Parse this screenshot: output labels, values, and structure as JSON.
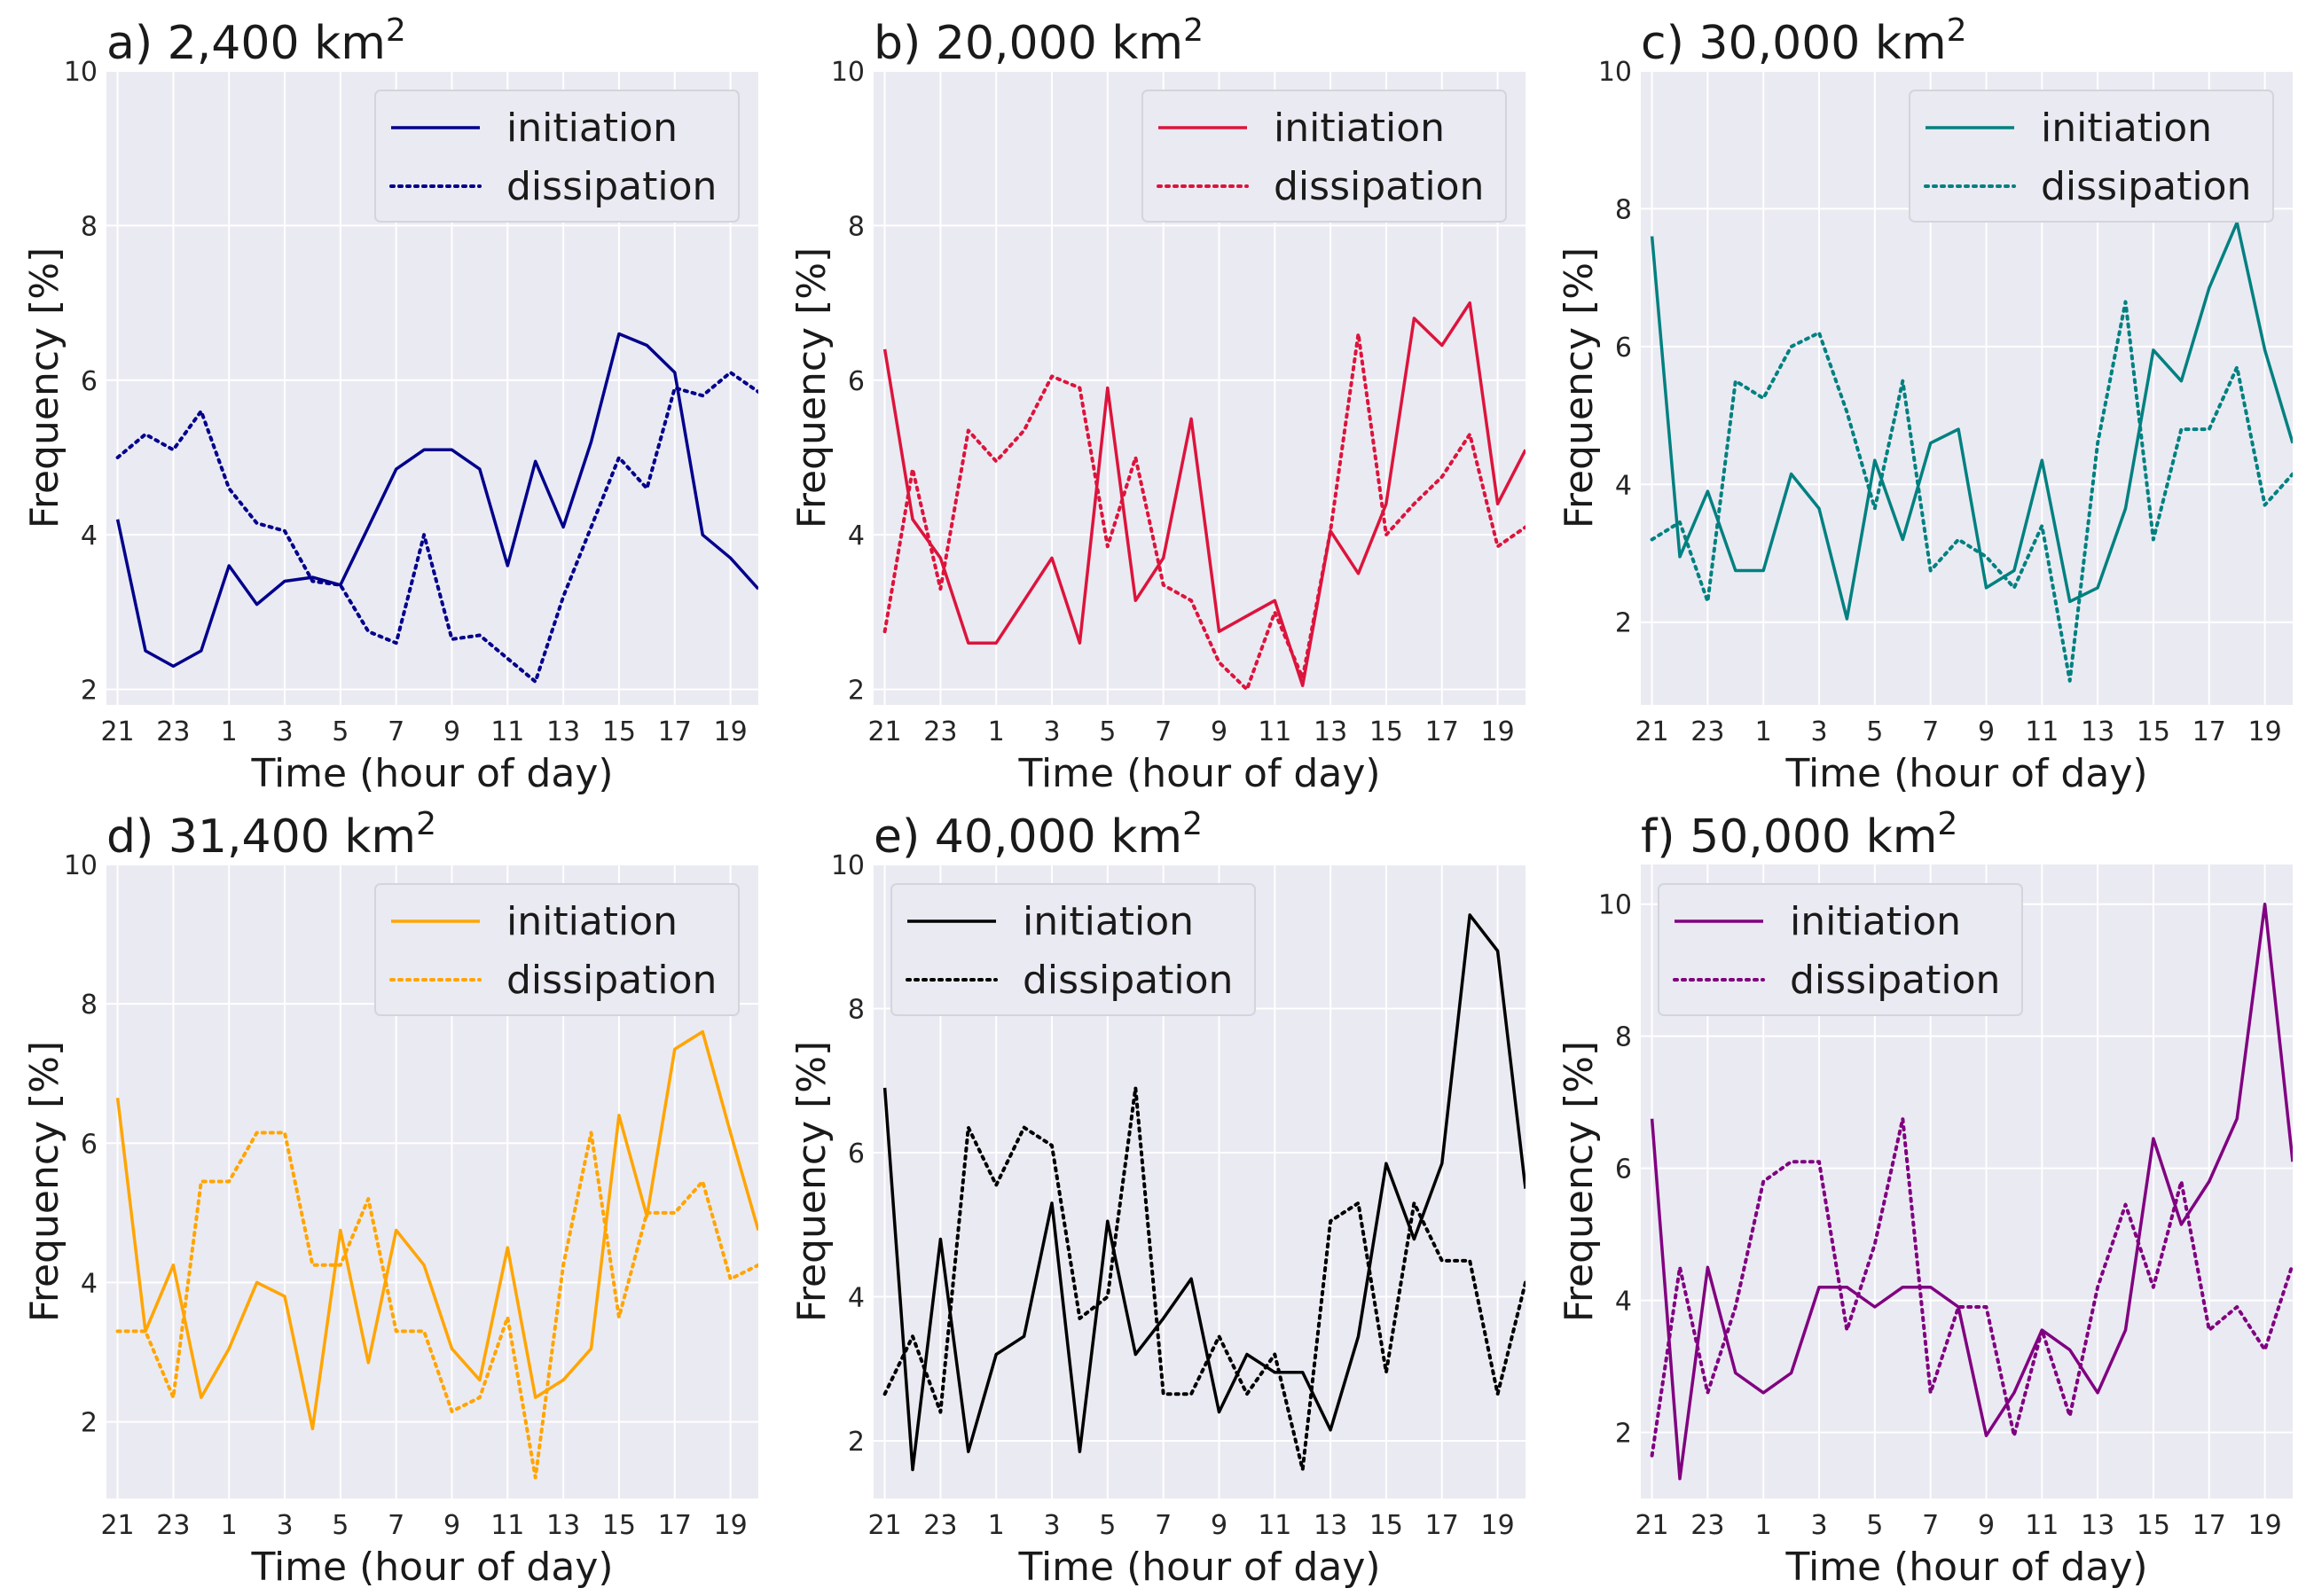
{
  "chart_data": [
    {
      "type": "line",
      "title": "a) 2,400 km",
      "title_sup": "2",
      "xlabel": "Time (hour of day)",
      "ylabel": "Frequency [%]",
      "x": [
        21,
        22,
        23,
        24,
        25,
        26,
        27,
        28,
        29,
        30,
        31,
        32,
        33,
        34,
        35,
        36,
        37,
        38,
        39,
        40,
        41,
        42,
        43,
        44
      ],
      "xticks": [
        21,
        23,
        25,
        27,
        29,
        31,
        33,
        35,
        37,
        39,
        41,
        43
      ],
      "xtick_labels": [
        "21",
        "23",
        "1",
        "3",
        "5",
        "7",
        "9",
        "11",
        "13",
        "15",
        "17",
        "19"
      ],
      "ylim": [
        1.8,
        10.0
      ],
      "yticks": [
        2,
        4,
        6,
        8,
        10
      ],
      "ytick_labels": [
        "2",
        "4",
        "6",
        "8",
        "10"
      ],
      "xlim": [
        20.6,
        44.0
      ],
      "color": "#00008b",
      "legend_position": "top-right",
      "series": [
        {
          "name": "initiation",
          "style": "solid",
          "values": [
            4.2,
            2.5,
            2.3,
            2.5,
            3.6,
            3.1,
            3.4,
            3.45,
            3.35,
            4.1,
            4.85,
            5.1,
            5.1,
            4.85,
            3.6,
            4.95,
            4.1,
            5.2,
            6.6,
            6.45,
            6.1,
            4.0,
            3.7,
            3.3
          ]
        },
        {
          "name": "dissipation",
          "style": "dotted",
          "values": [
            5.0,
            5.3,
            5.1,
            5.6,
            4.6,
            4.15,
            4.05,
            3.4,
            3.35,
            2.75,
            2.6,
            4.0,
            2.65,
            2.7,
            2.4,
            2.1,
            3.2,
            4.1,
            5.0,
            4.6,
            5.9,
            5.8,
            6.1,
            5.85
          ]
        }
      ]
    },
    {
      "type": "line",
      "title": "b) 20,000 km",
      "title_sup": "2",
      "xlabel": "Time (hour of day)",
      "ylabel": "Frequency [%]",
      "x": [
        21,
        22,
        23,
        24,
        25,
        26,
        27,
        28,
        29,
        30,
        31,
        32,
        33,
        34,
        35,
        36,
        37,
        38,
        39,
        40,
        41,
        42,
        43,
        44
      ],
      "xticks": [
        21,
        23,
        25,
        27,
        29,
        31,
        33,
        35,
        37,
        39,
        41,
        43
      ],
      "xtick_labels": [
        "21",
        "23",
        "1",
        "3",
        "5",
        "7",
        "9",
        "11",
        "13",
        "15",
        "17",
        "19"
      ],
      "ylim": [
        1.8,
        10.0
      ],
      "yticks": [
        2,
        4,
        6,
        8,
        10
      ],
      "ytick_labels": [
        "2",
        "4",
        "6",
        "8",
        "10"
      ],
      "xlim": [
        20.6,
        44.0
      ],
      "color": "#dc143c",
      "legend_position": "top-right",
      "series": [
        {
          "name": "initiation",
          "style": "solid",
          "values": [
            6.4,
            4.2,
            3.7,
            2.6,
            2.6,
            3.15,
            3.7,
            2.6,
            5.9,
            3.15,
            3.7,
            5.5,
            2.75,
            2.95,
            3.15,
            2.05,
            4.05,
            3.5,
            4.4,
            6.8,
            6.45,
            7.0,
            4.4,
            5.1
          ]
        },
        {
          "name": "dissipation",
          "style": "dotted",
          "values": [
            2.75,
            4.85,
            3.3,
            5.35,
            4.95,
            5.35,
            6.05,
            5.9,
            3.85,
            5.0,
            3.35,
            3.15,
            2.35,
            2.0,
            3.0,
            2.15,
            4.05,
            6.6,
            4.0,
            4.4,
            4.75,
            5.3,
            3.85,
            4.1
          ]
        }
      ]
    },
    {
      "type": "line",
      "title": "c) 30,000 km",
      "title_sup": "2",
      "xlabel": "Time (hour of day)",
      "ylabel": "Frequency [%]",
      "x": [
        21,
        22,
        23,
        24,
        25,
        26,
        27,
        28,
        29,
        30,
        31,
        32,
        33,
        34,
        35,
        36,
        37,
        38,
        39,
        40,
        41,
        42,
        43,
        44
      ],
      "xticks": [
        21,
        23,
        25,
        27,
        29,
        31,
        33,
        35,
        37,
        39,
        41,
        43
      ],
      "xtick_labels": [
        "21",
        "23",
        "1",
        "3",
        "5",
        "7",
        "9",
        "11",
        "13",
        "15",
        "17",
        "19"
      ],
      "ylim": [
        0.8,
        10.0
      ],
      "yticks": [
        2,
        4,
        6,
        8,
        10
      ],
      "ytick_labels": [
        "2",
        "4",
        "6",
        "8",
        "10"
      ],
      "xlim": [
        20.6,
        44.0
      ],
      "color": "#008080",
      "legend_position": "top-right",
      "series": [
        {
          "name": "initiation",
          "style": "solid",
          "values": [
            7.6,
            2.95,
            3.9,
            2.75,
            2.75,
            4.15,
            3.65,
            2.05,
            4.35,
            3.2,
            4.6,
            4.8,
            2.5,
            2.75,
            4.35,
            2.3,
            2.5,
            3.65,
            5.95,
            5.5,
            6.85,
            7.8,
            5.95,
            4.6
          ]
        },
        {
          "name": "dissipation",
          "style": "dotted",
          "values": [
            3.2,
            3.45,
            2.3,
            5.5,
            5.25,
            6.0,
            6.2,
            5.05,
            3.65,
            5.5,
            2.75,
            3.2,
            2.95,
            2.5,
            3.4,
            1.15,
            4.6,
            6.65,
            3.2,
            4.8,
            4.8,
            5.7,
            3.7,
            4.15
          ]
        }
      ]
    },
    {
      "type": "line",
      "title": "d) 31,400 km",
      "title_sup": "2",
      "xlabel": "Time (hour of day)",
      "ylabel": "Frequency [%]",
      "x": [
        21,
        22,
        23,
        24,
        25,
        26,
        27,
        28,
        29,
        30,
        31,
        32,
        33,
        34,
        35,
        36,
        37,
        38,
        39,
        40,
        41,
        42,
        43,
        44
      ],
      "xticks": [
        21,
        23,
        25,
        27,
        29,
        31,
        33,
        35,
        37,
        39,
        41,
        43
      ],
      "xtick_labels": [
        "21",
        "23",
        "1",
        "3",
        "5",
        "7",
        "9",
        "11",
        "13",
        "15",
        "17",
        "19"
      ],
      "ylim": [
        0.9,
        10.0
      ],
      "yticks": [
        2,
        4,
        6,
        8,
        10
      ],
      "ytick_labels": [
        "2",
        "4",
        "6",
        "8",
        "10"
      ],
      "xlim": [
        20.6,
        44.0
      ],
      "color": "#ffa500",
      "legend_position": "top-right",
      "series": [
        {
          "name": "initiation",
          "style": "solid",
          "values": [
            6.65,
            3.3,
            4.25,
            2.35,
            3.05,
            4.0,
            3.8,
            1.9,
            4.75,
            2.85,
            4.75,
            4.25,
            3.05,
            2.6,
            4.5,
            2.35,
            2.6,
            3.05,
            6.4,
            4.95,
            7.35,
            7.6,
            6.15,
            4.75
          ]
        },
        {
          "name": "dissipation",
          "style": "dotted",
          "values": [
            3.3,
            3.3,
            2.35,
            5.45,
            5.45,
            6.15,
            6.15,
            4.25,
            4.25,
            5.2,
            3.3,
            3.3,
            2.15,
            2.35,
            3.5,
            1.2,
            4.25,
            6.15,
            3.5,
            5.0,
            5.0,
            5.45,
            4.05,
            4.25
          ]
        }
      ]
    },
    {
      "type": "line",
      "title": "e) 40,000 km",
      "title_sup": "2",
      "xlabel": "Time (hour of day)",
      "ylabel": "Frequency [%]",
      "x": [
        21,
        22,
        23,
        24,
        25,
        26,
        27,
        28,
        29,
        30,
        31,
        32,
        33,
        34,
        35,
        36,
        37,
        38,
        39,
        40,
        41,
        42,
        43,
        44
      ],
      "xticks": [
        21,
        23,
        25,
        27,
        29,
        31,
        33,
        35,
        37,
        39,
        41,
        43
      ],
      "xtick_labels": [
        "21",
        "23",
        "1",
        "3",
        "5",
        "7",
        "9",
        "11",
        "13",
        "15",
        "17",
        "19"
      ],
      "ylim": [
        1.2,
        10.0
      ],
      "yticks": [
        2,
        4,
        6,
        8,
        10
      ],
      "ytick_labels": [
        "2",
        "4",
        "6",
        "8",
        "10"
      ],
      "xlim": [
        20.6,
        44.0
      ],
      "color": "#000000",
      "legend_position": "top-left",
      "series": [
        {
          "name": "initiation",
          "style": "solid",
          "values": [
            6.9,
            1.6,
            4.8,
            1.85,
            3.2,
            3.45,
            5.3,
            1.85,
            5.05,
            3.2,
            3.7,
            4.25,
            2.4,
            3.2,
            2.95,
            2.95,
            2.15,
            3.45,
            5.85,
            4.8,
            5.85,
            9.3,
            8.8,
            5.5
          ]
        },
        {
          "name": "dissipation",
          "style": "dotted",
          "values": [
            2.65,
            3.45,
            2.4,
            6.35,
            5.55,
            6.35,
            6.1,
            3.7,
            4.0,
            6.9,
            2.65,
            2.65,
            3.45,
            2.65,
            3.2,
            1.6,
            5.05,
            5.3,
            2.95,
            5.3,
            4.5,
            4.5,
            2.65,
            4.2
          ]
        }
      ]
    },
    {
      "type": "line",
      "title": "f) 50,000 km",
      "title_sup": "2",
      "xlabel": "Time (hour of day)",
      "ylabel": "Frequency [%]",
      "x": [
        21,
        22,
        23,
        24,
        25,
        26,
        27,
        28,
        29,
        30,
        31,
        32,
        33,
        34,
        35,
        36,
        37,
        38,
        39,
        40,
        41,
        42,
        43,
        44
      ],
      "xticks": [
        21,
        23,
        25,
        27,
        29,
        31,
        33,
        35,
        37,
        39,
        41,
        43
      ],
      "xtick_labels": [
        "21",
        "23",
        "1",
        "3",
        "5",
        "7",
        "9",
        "11",
        "13",
        "15",
        "17",
        "19"
      ],
      "ylim": [
        1.0,
        10.6
      ],
      "yticks": [
        2,
        4,
        6,
        8,
        10
      ],
      "ytick_labels": [
        "2",
        "4",
        "6",
        "8",
        "10"
      ],
      "xlim": [
        20.6,
        44.0
      ],
      "color": "#800080",
      "legend_position": "top-left",
      "series": [
        {
          "name": "initiation",
          "style": "solid",
          "values": [
            6.75,
            1.3,
            4.5,
            2.9,
            2.6,
            2.9,
            4.2,
            4.2,
            3.9,
            4.2,
            4.2,
            3.9,
            1.95,
            2.6,
            3.55,
            3.25,
            2.6,
            3.55,
            6.45,
            5.15,
            5.8,
            6.75,
            10.0,
            6.1
          ]
        },
        {
          "name": "dissipation",
          "style": "dotted",
          "values": [
            1.65,
            4.5,
            2.6,
            3.9,
            5.8,
            6.1,
            6.1,
            3.55,
            4.85,
            6.75,
            2.6,
            3.9,
            3.9,
            1.95,
            3.55,
            2.25,
            4.2,
            5.45,
            4.2,
            5.8,
            3.55,
            3.9,
            3.25,
            4.55
          ]
        }
      ]
    }
  ]
}
